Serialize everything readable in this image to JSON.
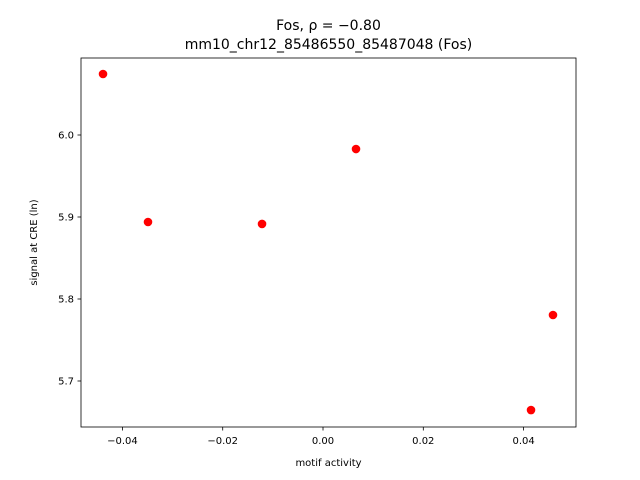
{
  "chart_data": {
    "type": "scatter",
    "title": "Fos, ρ = −0.80",
    "subtitle": "mm10_chr12_85486550_85487048 (Fos)",
    "x_label": "motif activity",
    "y_label": "signal at CRE (ln)",
    "color": "#ff0000",
    "x": [
      -0.04387,
      -0.0349,
      -0.01216,
      0.00658,
      0.04586,
      0.04148
    ],
    "y": [
      6.0744,
      5.8939,
      5.8915,
      5.9829,
      5.7805,
      5.6646
    ],
    "xlim": [
      -0.04826,
      0.05045
    ],
    "ylim": [
      5.6439,
      6.0939
    ],
    "xticks": [
      {
        "value": -0.04,
        "label": "−0.04"
      },
      {
        "value": -0.02,
        "label": "−0.02"
      },
      {
        "value": 0,
        "label": "0.00"
      },
      0.02,
      0.04
    ],
    "yticks": [
      5.7,
      5.8,
      5.9,
      {
        "value": 6,
        "label": "6.0"
      }
    ]
  }
}
